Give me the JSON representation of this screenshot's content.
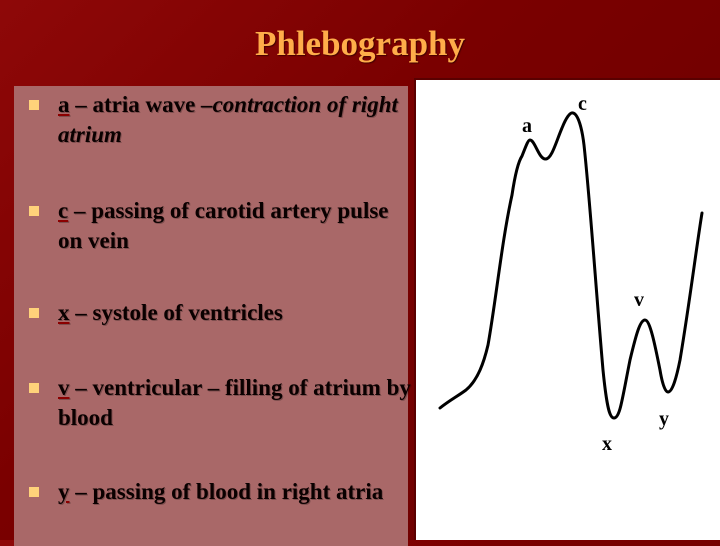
{
  "title": "Phlebography",
  "items": [
    {
      "letter": "a",
      "text": " – atria wave ",
      "italic": "–contraction of right atrium"
    },
    {
      "letter": "c",
      "text": " – passing of carotid artery pulse on vein",
      "italic": ""
    },
    {
      "letter": "x",
      "text": " – systole of ventricles",
      "italic": ""
    },
    {
      "letter": "v",
      "text": " – ventricular – filling of atrium by blood",
      "italic": ""
    },
    {
      "letter": "y",
      "text": " – passing of blood in right atria",
      "italic": ""
    }
  ],
  "figure": {
    "labels": {
      "a": "a",
      "c": "c",
      "v": "v",
      "x": "x",
      "y": "y"
    }
  },
  "colors": {
    "background": "#7a0000",
    "title": "#ffad4a",
    "panel": "#a96868",
    "bullet": "#ffd27a"
  }
}
